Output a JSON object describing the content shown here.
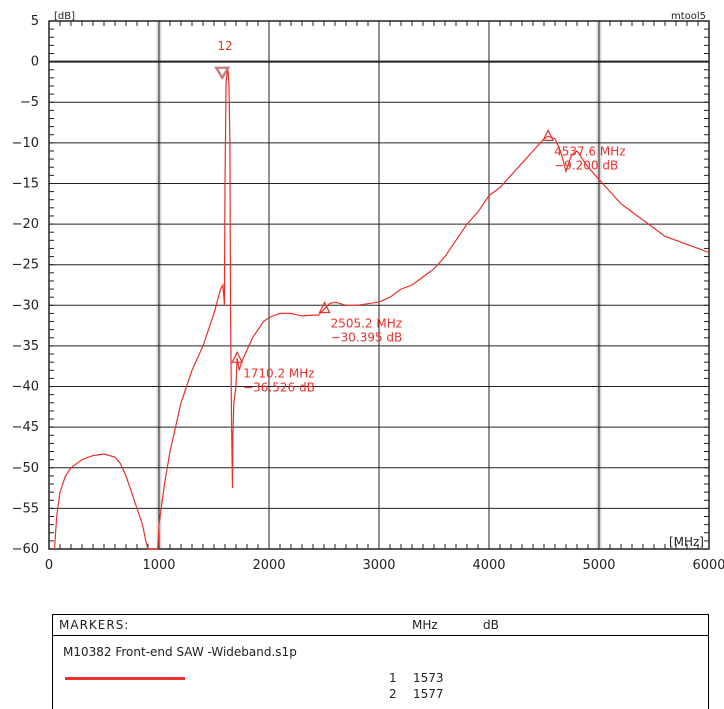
{
  "header": {
    "y_unit": "[dB]",
    "corner_tag": "mtool5",
    "x_unit": "[MHz]"
  },
  "colors": {
    "trace": "#e8312a",
    "grid": "#222222",
    "highlight_grid": "#d8d8d8"
  },
  "chart_data": {
    "type": "line",
    "title": "",
    "xlabel": "[MHz]",
    "ylabel": "[dB]",
    "xlim": [
      0,
      6000
    ],
    "ylim": [
      -60,
      5
    ],
    "x_ticks": [
      0,
      1000,
      2000,
      3000,
      4000,
      5000,
      6000
    ],
    "y_ticks": [
      5,
      0,
      -5,
      -10,
      -15,
      -20,
      -25,
      -30,
      -35,
      -40,
      -45,
      -50,
      -55,
      -60
    ],
    "grid": true,
    "series": [
      {
        "points": [
          [
            50,
            -60
          ],
          [
            70,
            -56
          ],
          [
            100,
            -53
          ],
          [
            150,
            -51
          ],
          [
            200,
            -50
          ],
          [
            250,
            -49.5
          ],
          [
            300,
            -49
          ],
          [
            400,
            -48.5
          ],
          [
            500,
            -48.3
          ],
          [
            600,
            -48.7
          ],
          [
            650,
            -49.5
          ],
          [
            700,
            -51
          ],
          [
            750,
            -53
          ],
          [
            800,
            -55
          ],
          [
            850,
            -57
          ],
          [
            880,
            -59
          ],
          [
            900,
            -60
          ],
          [
            990,
            -60
          ],
          [
            1000,
            -57
          ],
          [
            1020,
            -55
          ],
          [
            1050,
            -52
          ],
          [
            1100,
            -48
          ],
          [
            1150,
            -45
          ],
          [
            1200,
            -42
          ],
          [
            1250,
            -40
          ],
          [
            1300,
            -38
          ],
          [
            1350,
            -36.5
          ],
          [
            1400,
            -35
          ],
          [
            1450,
            -33
          ],
          [
            1500,
            -31
          ],
          [
            1540,
            -29
          ],
          [
            1560,
            -28
          ],
          [
            1580,
            -27.5
          ],
          [
            1590,
            -29
          ],
          [
            1595,
            -30
          ],
          [
            1600,
            -15
          ],
          [
            1610,
            -2.5
          ],
          [
            1625,
            -0.8
          ],
          [
            1635,
            -2.5
          ],
          [
            1645,
            -10
          ],
          [
            1650,
            -30
          ],
          [
            1660,
            -45
          ],
          [
            1668,
            -52.5
          ],
          [
            1672,
            -46
          ],
          [
            1680,
            -42
          ],
          [
            1700,
            -40
          ],
          [
            1710,
            -36.5
          ],
          [
            1730,
            -38
          ],
          [
            1750,
            -37
          ],
          [
            1800,
            -35.5
          ],
          [
            1850,
            -34
          ],
          [
            1900,
            -33
          ],
          [
            1950,
            -32
          ],
          [
            2000,
            -31.5
          ],
          [
            2100,
            -31
          ],
          [
            2200,
            -31
          ],
          [
            2300,
            -31.3
          ],
          [
            2400,
            -31.2
          ],
          [
            2450,
            -31.2
          ],
          [
            2505,
            -30.4
          ],
          [
            2550,
            -29.8
          ],
          [
            2600,
            -29.6
          ],
          [
            2700,
            -30
          ],
          [
            2800,
            -30
          ],
          [
            2900,
            -29.8
          ],
          [
            3000,
            -29.6
          ],
          [
            3100,
            -29
          ],
          [
            3200,
            -28
          ],
          [
            3300,
            -27.5
          ],
          [
            3400,
            -26.5
          ],
          [
            3500,
            -25.5
          ],
          [
            3600,
            -24
          ],
          [
            3700,
            -22
          ],
          [
            3800,
            -20
          ],
          [
            3900,
            -18.5
          ],
          [
            4000,
            -16.5
          ],
          [
            4100,
            -15.5
          ],
          [
            4200,
            -14
          ],
          [
            4300,
            -12.5
          ],
          [
            4400,
            -11
          ],
          [
            4500,
            -9.5
          ],
          [
            4537,
            -9.2
          ],
          [
            4600,
            -9.5
          ],
          [
            4650,
            -11
          ],
          [
            4700,
            -13.5
          ],
          [
            4750,
            -11.5
          ],
          [
            4800,
            -11
          ],
          [
            4850,
            -12
          ],
          [
            4900,
            -13
          ],
          [
            5000,
            -14.5
          ],
          [
            5100,
            -16
          ],
          [
            5200,
            -17.5
          ],
          [
            5300,
            -18.5
          ],
          [
            5400,
            -19.5
          ],
          [
            5500,
            -20.5
          ],
          [
            5600,
            -21.5
          ],
          [
            5700,
            -22
          ],
          [
            5800,
            -22.5
          ],
          [
            5900,
            -23
          ],
          [
            6000,
            -23.5
          ]
        ]
      }
    ],
    "markers": [
      {
        "id": "1",
        "x": 1573,
        "y": -1.5,
        "style": "triangle-down"
      },
      {
        "id": "2",
        "x": 1577,
        "y": -1.5,
        "style": "triangle-down"
      },
      {
        "id": "d1",
        "x": 1710.2,
        "y": -36.526,
        "style": "delta",
        "label_mhz": "1710.2 MHz",
        "label_db": "−36.526 dB"
      },
      {
        "id": "d2",
        "x": 2505.2,
        "y": -30.395,
        "style": "delta",
        "label_mhz": "2505.2 MHz",
        "label_db": "−30.395 dB"
      },
      {
        "id": "d3",
        "x": 4537.6,
        "y": -9.2,
        "style": "delta",
        "label_mhz": "4537.6 MHz",
        "label_db": "−9.200 dB"
      }
    ],
    "marker_number_label": "12"
  },
  "markers_table": {
    "title": "MARKERS:",
    "unit_x": "MHz",
    "unit_y": "dB",
    "file": "M10382 Front-end SAW  -Wideband.s1p",
    "rows": [
      {
        "index": "1",
        "freq": "1573"
      },
      {
        "index": "2",
        "freq": "1577"
      }
    ]
  }
}
